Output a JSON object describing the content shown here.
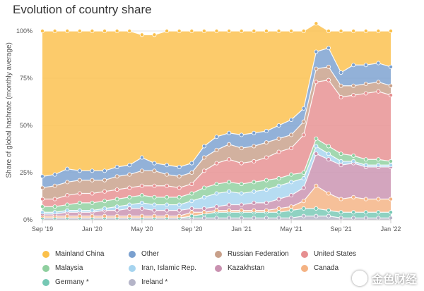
{
  "chart_data": {
    "type": "area",
    "title": "Evolution of country share",
    "ylabel": "Share of global hashrate (monthly average)",
    "xlabel": "",
    "x": [
      "2019-09",
      "2019-10",
      "2019-11",
      "2019-12",
      "2020-01",
      "2020-02",
      "2020-03",
      "2020-04",
      "2020-05",
      "2020-06",
      "2020-07",
      "2020-08",
      "2020-09",
      "2020-10",
      "2020-11",
      "2020-12",
      "2021-01",
      "2021-02",
      "2021-03",
      "2021-04",
      "2021-05",
      "2021-06",
      "2021-07",
      "2021-08",
      "2021-09",
      "2021-10",
      "2021-11",
      "2021-12",
      "2022-01"
    ],
    "x_tick_labels": [
      "Sep '19",
      "Jan '20",
      "May '20",
      "Sep '20",
      "Jan '21",
      "May '21",
      "Sep '21",
      "Jan '22"
    ],
    "x_tick_indices": [
      0,
      4,
      8,
      12,
      16,
      20,
      24,
      28
    ],
    "y_tick_labels": [
      "0%",
      "25%",
      "50%",
      "75%",
      "100%"
    ],
    "y_tick_values": [
      0,
      25,
      50,
      75,
      100
    ],
    "ylim": [
      0,
      100
    ],
    "stacked": true,
    "grid": true,
    "legend_position": "bottom",
    "series": [
      {
        "name": "Ireland *",
        "color": "#b4b4c8",
        "values": [
          1,
          1,
          1,
          1,
          1,
          1,
          1,
          1,
          1,
          1,
          1,
          1,
          1,
          1,
          1,
          1,
          1,
          1,
          1,
          1,
          1,
          2,
          2,
          2,
          1,
          1,
          1,
          1,
          1
        ]
      },
      {
        "name": "Germany *",
        "color": "#76c8b4",
        "values": [
          0,
          0,
          0,
          0,
          0,
          0,
          0,
          0,
          0,
          0,
          0,
          0,
          1,
          2,
          3,
          3,
          3,
          3,
          3,
          3,
          4,
          4,
          4,
          3,
          3,
          3,
          3,
          3,
          3
        ]
      },
      {
        "name": "Canada",
        "color": "#f4b283",
        "values": [
          1,
          1,
          1,
          1,
          1,
          1,
          1,
          1,
          1,
          1,
          1,
          1,
          2,
          1,
          1,
          1,
          1,
          1,
          1,
          2,
          2,
          4,
          12,
          9,
          7,
          8,
          7,
          7,
          7
        ]
      },
      {
        "name": "Kazakhstan",
        "color": "#c991b0",
        "values": [
          1,
          1,
          2,
          2,
          2,
          3,
          3,
          4,
          4,
          3,
          3,
          3,
          2,
          2,
          2,
          3,
          3,
          4,
          4,
          5,
          6,
          7,
          17,
          18,
          18,
          18,
          17,
          17,
          17
        ]
      },
      {
        "name": "Iran, Islamic Rep.",
        "color": "#a6d4ef",
        "values": [
          1,
          1,
          1,
          1,
          1,
          1,
          2,
          2,
          3,
          3,
          3,
          3,
          4,
          6,
          7,
          7,
          6,
          6,
          7,
          7,
          7,
          5,
          4,
          3,
          2,
          1,
          1,
          1,
          1
        ]
      },
      {
        "name": "Malaysia",
        "color": "#8fcf9f",
        "values": [
          3,
          3,
          3,
          4,
          4,
          4,
          4,
          4,
          4,
          4,
          4,
          4,
          4,
          5,
          5,
          5,
          5,
          5,
          5,
          4,
          4,
          3,
          4,
          4,
          4,
          3,
          3,
          3,
          2
        ]
      },
      {
        "name": "United States",
        "color": "#e68f90",
        "values": [
          4,
          4,
          5,
          5,
          5,
          5,
          5,
          5,
          5,
          6,
          6,
          5,
          5,
          9,
          11,
          12,
          11,
          11,
          12,
          14,
          14,
          20,
          30,
          35,
          30,
          32,
          35,
          36,
          35
        ]
      },
      {
        "name": "Russian Federation",
        "color": "#c8a08a",
        "values": [
          6,
          7,
          7,
          7,
          7,
          6,
          7,
          7,
          8,
          8,
          6,
          6,
          6,
          7,
          7,
          8,
          8,
          8,
          8,
          7,
          7,
          7,
          7,
          7,
          6,
          5,
          5,
          5,
          5
        ]
      },
      {
        "name": "Other",
        "color": "#7aa0cf",
        "values": [
          6,
          6,
          7,
          5,
          5,
          5,
          5,
          5,
          7,
          4,
          5,
          5,
          5,
          6,
          7,
          6,
          7,
          7,
          6,
          7,
          8,
          7,
          9,
          10,
          7,
          11,
          10,
          10,
          10
        ]
      },
      {
        "name": "Mainland China",
        "color": "#fbc04a",
        "values": [
          77,
          76,
          73,
          74,
          74,
          74,
          72,
          71,
          65,
          68,
          71,
          72,
          70,
          61,
          56,
          54,
          55,
          54,
          53,
          50,
          47,
          41,
          15,
          9,
          22,
          18,
          18,
          17,
          19
        ]
      }
    ],
    "legend_order": [
      "Mainland China",
      "Other",
      "Russian Federation",
      "United States",
      "Malaysia",
      "Iran, Islamic Rep.",
      "Kazakhstan",
      "Canada",
      "Germany *",
      "Ireland *"
    ]
  },
  "watermark": {
    "text": "金色财经"
  }
}
